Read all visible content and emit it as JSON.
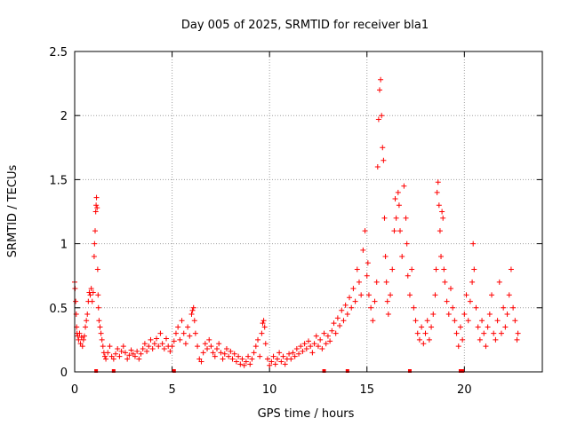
{
  "chart_data": {
    "type": "scatter",
    "title": "Day 005 of 2025, SRMTID for receiver bla1",
    "xlabel": "GPS time / hours",
    "ylabel": "SRMTID / TECUs",
    "xlim": [
      0,
      24
    ],
    "ylim": [
      0,
      2.5
    ],
    "xticks": [
      0,
      5,
      10,
      15,
      20
    ],
    "yticks": [
      0,
      0.5,
      1,
      1.5,
      2,
      2.5
    ],
    "xtick_labels": [
      "0",
      "5",
      "10",
      "15",
      "20"
    ],
    "ytick_labels": [
      "0",
      "0.5",
      "1",
      "1.5",
      "2",
      "2.5"
    ],
    "grid": true,
    "marker": "+",
    "color": "#ff0000",
    "series": [
      {
        "name": "SRMTID",
        "points": [
          [
            0.0,
            0.7
          ],
          [
            0.02,
            0.65
          ],
          [
            0.05,
            0.55
          ],
          [
            0.08,
            0.45
          ],
          [
            0.1,
            0.35
          ],
          [
            0.12,
            0.3
          ],
          [
            0.15,
            0.28
          ],
          [
            0.2,
            0.25
          ],
          [
            0.25,
            0.3
          ],
          [
            0.3,
            0.22
          ],
          [
            0.35,
            0.27
          ],
          [
            0.4,
            0.2
          ],
          [
            0.45,
            0.25
          ],
          [
            0.5,
            0.28
          ],
          [
            0.55,
            0.35
          ],
          [
            0.6,
            0.4
          ],
          [
            0.65,
            0.45
          ],
          [
            0.7,
            0.55
          ],
          [
            0.75,
            0.62
          ],
          [
            0.8,
            0.6
          ],
          [
            0.85,
            0.65
          ],
          [
            0.9,
            0.55
          ],
          [
            0.95,
            0.62
          ],
          [
            1.0,
            0.9
          ],
          [
            1.02,
            1.0
          ],
          [
            1.05,
            1.1
          ],
          [
            1.08,
            1.25
          ],
          [
            1.1,
            1.3
          ],
          [
            1.12,
            1.36
          ],
          [
            1.15,
            1.28
          ],
          [
            1.18,
            0.8
          ],
          [
            1.2,
            0.6
          ],
          [
            1.22,
            0.5
          ],
          [
            1.25,
            0.4
          ],
          [
            1.3,
            0.35
          ],
          [
            1.35,
            0.3
          ],
          [
            1.4,
            0.25
          ],
          [
            1.45,
            0.2
          ],
          [
            1.5,
            0.15
          ],
          [
            1.55,
            0.12
          ],
          [
            1.6,
            0.1
          ],
          [
            1.7,
            0.15
          ],
          [
            1.8,
            0.2
          ],
          [
            1.9,
            0.12
          ],
          [
            2.0,
            0.1
          ],
          [
            2.1,
            0.14
          ],
          [
            2.2,
            0.18
          ],
          [
            2.3,
            0.12
          ],
          [
            2.4,
            0.16
          ],
          [
            2.5,
            0.2
          ],
          [
            2.6,
            0.15
          ],
          [
            2.7,
            0.1
          ],
          [
            2.8,
            0.13
          ],
          [
            2.9,
            0.17
          ],
          [
            3.0,
            0.14
          ],
          [
            3.1,
            0.12
          ],
          [
            3.2,
            0.16
          ],
          [
            3.3,
            0.1
          ],
          [
            3.4,
            0.14
          ],
          [
            3.5,
            0.18
          ],
          [
            3.6,
            0.22
          ],
          [
            3.7,
            0.16
          ],
          [
            3.8,
            0.2
          ],
          [
            3.9,
            0.25
          ],
          [
            4.0,
            0.18
          ],
          [
            4.1,
            0.22
          ],
          [
            4.2,
            0.26
          ],
          [
            4.3,
            0.2
          ],
          [
            4.4,
            0.3
          ],
          [
            4.5,
            0.22
          ],
          [
            4.6,
            0.18
          ],
          [
            4.7,
            0.26
          ],
          [
            4.8,
            0.2
          ],
          [
            4.9,
            0.16
          ],
          [
            5.0,
            0.2
          ],
          [
            5.1,
            0.24
          ],
          [
            5.2,
            0.3
          ],
          [
            5.3,
            0.35
          ],
          [
            5.4,
            0.25
          ],
          [
            5.5,
            0.4
          ],
          [
            5.6,
            0.3
          ],
          [
            5.7,
            0.22
          ],
          [
            5.8,
            0.35
          ],
          [
            5.9,
            0.28
          ],
          [
            6.0,
            0.45
          ],
          [
            6.05,
            0.48
          ],
          [
            6.1,
            0.5
          ],
          [
            6.15,
            0.4
          ],
          [
            6.2,
            0.3
          ],
          [
            6.3,
            0.2
          ],
          [
            6.4,
            0.1
          ],
          [
            6.5,
            0.08
          ],
          [
            6.6,
            0.15
          ],
          [
            6.7,
            0.22
          ],
          [
            6.8,
            0.18
          ],
          [
            6.9,
            0.25
          ],
          [
            7.0,
            0.2
          ],
          [
            7.1,
            0.15
          ],
          [
            7.2,
            0.12
          ],
          [
            7.3,
            0.18
          ],
          [
            7.4,
            0.22
          ],
          [
            7.5,
            0.15
          ],
          [
            7.6,
            0.1
          ],
          [
            7.7,
            0.14
          ],
          [
            7.8,
            0.18
          ],
          [
            7.9,
            0.12
          ],
          [
            8.0,
            0.16
          ],
          [
            8.1,
            0.1
          ],
          [
            8.2,
            0.14
          ],
          [
            8.3,
            0.08
          ],
          [
            8.4,
            0.12
          ],
          [
            8.5,
            0.06
          ],
          [
            8.6,
            0.1
          ],
          [
            8.7,
            0.05
          ],
          [
            8.8,
            0.08
          ],
          [
            8.9,
            0.12
          ],
          [
            9.0,
            0.06
          ],
          [
            9.1,
            0.1
          ],
          [
            9.2,
            0.15
          ],
          [
            9.3,
            0.2
          ],
          [
            9.4,
            0.25
          ],
          [
            9.5,
            0.12
          ],
          [
            9.6,
            0.3
          ],
          [
            9.65,
            0.38
          ],
          [
            9.7,
            0.4
          ],
          [
            9.75,
            0.35
          ],
          [
            9.8,
            0.22
          ],
          [
            9.9,
            0.1
          ],
          [
            10.0,
            0.05
          ],
          [
            10.1,
            0.08
          ],
          [
            10.2,
            0.12
          ],
          [
            10.3,
            0.06
          ],
          [
            10.4,
            0.1
          ],
          [
            10.5,
            0.15
          ],
          [
            10.6,
            0.08
          ],
          [
            10.7,
            0.12
          ],
          [
            10.8,
            0.06
          ],
          [
            10.9,
            0.1
          ],
          [
            11.0,
            0.14
          ],
          [
            11.1,
            0.1
          ],
          [
            11.2,
            0.15
          ],
          [
            11.3,
            0.12
          ],
          [
            11.4,
            0.18
          ],
          [
            11.5,
            0.14
          ],
          [
            11.6,
            0.2
          ],
          [
            11.7,
            0.16
          ],
          [
            11.8,
            0.22
          ],
          [
            11.9,
            0.18
          ],
          [
            12.0,
            0.24
          ],
          [
            12.1,
            0.2
          ],
          [
            12.2,
            0.15
          ],
          [
            12.3,
            0.22
          ],
          [
            12.4,
            0.28
          ],
          [
            12.5,
            0.2
          ],
          [
            12.6,
            0.25
          ],
          [
            12.7,
            0.18
          ],
          [
            12.8,
            0.3
          ],
          [
            12.9,
            0.22
          ],
          [
            13.0,
            0.28
          ],
          [
            13.1,
            0.24
          ],
          [
            13.2,
            0.32
          ],
          [
            13.3,
            0.38
          ],
          [
            13.4,
            0.3
          ],
          [
            13.5,
            0.42
          ],
          [
            13.6,
            0.36
          ],
          [
            13.7,
            0.48
          ],
          [
            13.8,
            0.4
          ],
          [
            13.9,
            0.52
          ],
          [
            14.0,
            0.45
          ],
          [
            14.1,
            0.58
          ],
          [
            14.2,
            0.5
          ],
          [
            14.3,
            0.65
          ],
          [
            14.4,
            0.55
          ],
          [
            14.5,
            0.8
          ],
          [
            14.6,
            0.7
          ],
          [
            14.7,
            0.6
          ],
          [
            14.8,
            0.95
          ],
          [
            14.9,
            1.1
          ],
          [
            15.0,
            0.75
          ],
          [
            15.05,
            0.85
          ],
          [
            15.1,
            0.6
          ],
          [
            15.2,
            0.5
          ],
          [
            15.3,
            0.4
          ],
          [
            15.4,
            0.55
          ],
          [
            15.5,
            0.7
          ],
          [
            15.55,
            1.6
          ],
          [
            15.6,
            1.97
          ],
          [
            15.65,
            2.2
          ],
          [
            15.7,
            2.28
          ],
          [
            15.75,
            2.0
          ],
          [
            15.8,
            1.75
          ],
          [
            15.85,
            1.65
          ],
          [
            15.9,
            1.2
          ],
          [
            15.95,
            0.9
          ],
          [
            16.0,
            0.7
          ],
          [
            16.05,
            0.55
          ],
          [
            16.1,
            0.45
          ],
          [
            16.2,
            0.6
          ],
          [
            16.3,
            0.8
          ],
          [
            16.4,
            1.1
          ],
          [
            16.45,
            1.35
          ],
          [
            16.5,
            1.2
          ],
          [
            16.6,
            1.4
          ],
          [
            16.65,
            1.3
          ],
          [
            16.7,
            1.1
          ],
          [
            16.8,
            0.9
          ],
          [
            16.9,
            1.45
          ],
          [
            17.0,
            1.2
          ],
          [
            17.05,
            1.0
          ],
          [
            17.1,
            0.75
          ],
          [
            17.2,
            0.6
          ],
          [
            17.3,
            0.8
          ],
          [
            17.4,
            0.5
          ],
          [
            17.5,
            0.4
          ],
          [
            17.6,
            0.3
          ],
          [
            17.7,
            0.25
          ],
          [
            17.8,
            0.35
          ],
          [
            17.9,
            0.22
          ],
          [
            18.0,
            0.3
          ],
          [
            18.1,
            0.4
          ],
          [
            18.2,
            0.25
          ],
          [
            18.3,
            0.35
          ],
          [
            18.4,
            0.45
          ],
          [
            18.5,
            0.6
          ],
          [
            18.55,
            0.8
          ],
          [
            18.6,
            1.4
          ],
          [
            18.65,
            1.48
          ],
          [
            18.7,
            1.3
          ],
          [
            18.75,
            1.1
          ],
          [
            18.8,
            0.9
          ],
          [
            18.85,
            1.25
          ],
          [
            18.9,
            1.2
          ],
          [
            18.95,
            0.8
          ],
          [
            19.0,
            0.7
          ],
          [
            19.1,
            0.55
          ],
          [
            19.2,
            0.45
          ],
          [
            19.3,
            0.65
          ],
          [
            19.4,
            0.5
          ],
          [
            19.5,
            0.4
          ],
          [
            19.6,
            0.3
          ],
          [
            19.7,
            0.2
          ],
          [
            19.8,
            0.35
          ],
          [
            19.9,
            0.25
          ],
          [
            20.0,
            0.45
          ],
          [
            20.1,
            0.6
          ],
          [
            20.2,
            0.4
          ],
          [
            20.3,
            0.55
          ],
          [
            20.4,
            0.7
          ],
          [
            20.45,
            1.0
          ],
          [
            20.5,
            0.8
          ],
          [
            20.6,
            0.5
          ],
          [
            20.7,
            0.35
          ],
          [
            20.8,
            0.25
          ],
          [
            20.9,
            0.4
          ],
          [
            21.0,
            0.3
          ],
          [
            21.1,
            0.2
          ],
          [
            21.2,
            0.35
          ],
          [
            21.3,
            0.45
          ],
          [
            21.4,
            0.6
          ],
          [
            21.5,
            0.3
          ],
          [
            21.6,
            0.25
          ],
          [
            21.7,
            0.4
          ],
          [
            21.8,
            0.7
          ],
          [
            21.9,
            0.3
          ],
          [
            22.0,
            0.5
          ],
          [
            22.1,
            0.35
          ],
          [
            22.2,
            0.45
          ],
          [
            22.3,
            0.6
          ],
          [
            22.4,
            0.8
          ],
          [
            22.5,
            0.5
          ],
          [
            22.6,
            0.4
          ],
          [
            22.7,
            0.25
          ],
          [
            22.75,
            0.3
          ]
        ]
      }
    ],
    "axis_markers": [
      1.1,
      2.0,
      5.1,
      12.8,
      14.0,
      17.2,
      19.8,
      19.9
    ]
  }
}
